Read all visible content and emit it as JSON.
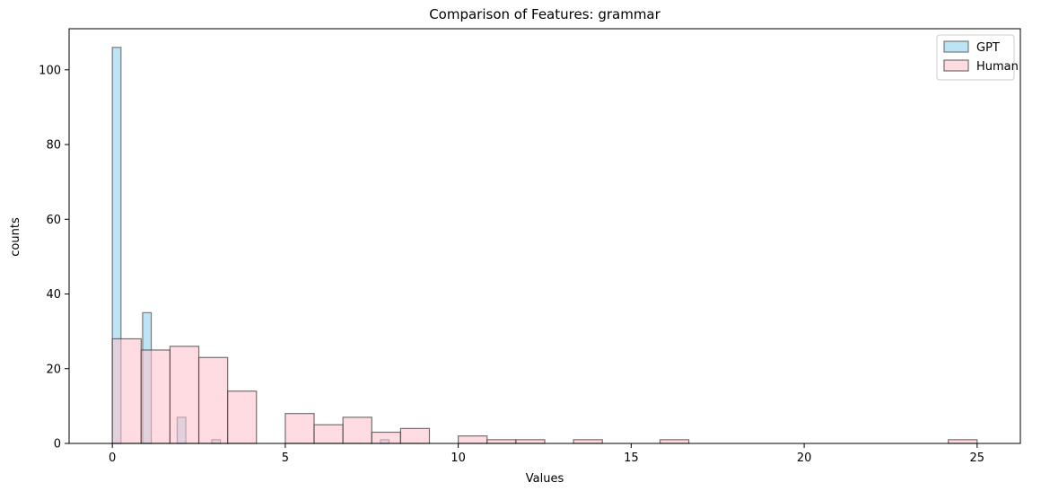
{
  "chart_data": {
    "type": "bar",
    "title": "Comparison of Features: grammar",
    "xlabel": "Values",
    "ylabel": "counts",
    "xlim": [
      -1.25,
      26.25
    ],
    "ylim": [
      0,
      111
    ],
    "xticks": [
      0,
      5,
      10,
      15,
      20,
      25
    ],
    "yticks": [
      0,
      20,
      40,
      60,
      80,
      100
    ],
    "legend_position": "top-right",
    "series": [
      {
        "name": "GPT",
        "color": "#87ceeb",
        "edge": "#555555",
        "bin_width": 0.25,
        "bins": [
          {
            "x": 0.0,
            "count": 106
          },
          {
            "x": 0.875,
            "count": 35
          },
          {
            "x": 1.875,
            "count": 7
          },
          {
            "x": 2.875,
            "count": 1
          },
          {
            "x": 7.75,
            "count": 1
          }
        ]
      },
      {
        "name": "Human",
        "color": "#ffc0cb",
        "edge": "#444444",
        "bin_width": 0.833,
        "bins": [
          {
            "x": 0.0,
            "count": 28
          },
          {
            "x": 0.833,
            "count": 25
          },
          {
            "x": 1.667,
            "count": 26
          },
          {
            "x": 2.5,
            "count": 23
          },
          {
            "x": 3.333,
            "count": 14
          },
          {
            "x": 5.0,
            "count": 8
          },
          {
            "x": 5.833,
            "count": 5
          },
          {
            "x": 6.667,
            "count": 7
          },
          {
            "x": 7.5,
            "count": 3
          },
          {
            "x": 8.333,
            "count": 4
          },
          {
            "x": 10.0,
            "count": 2
          },
          {
            "x": 10.833,
            "count": 1
          },
          {
            "x": 11.667,
            "count": 1
          },
          {
            "x": 13.333,
            "count": 1
          },
          {
            "x": 15.833,
            "count": 1
          },
          {
            "x": 24.167,
            "count": 1
          }
        ]
      }
    ]
  }
}
